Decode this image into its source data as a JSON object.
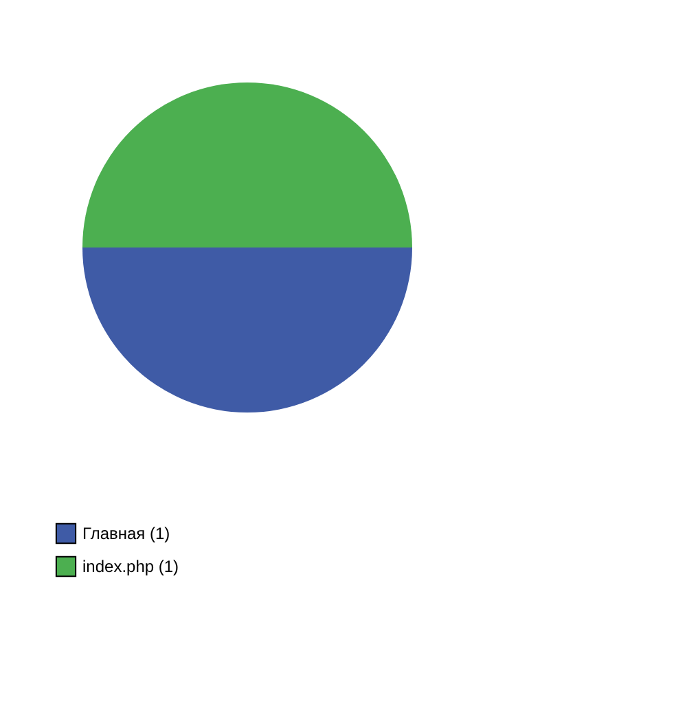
{
  "chart_data": {
    "type": "pie",
    "categories": [
      "Главная (1)",
      "index.php (1)"
    ],
    "values": [
      50,
      50
    ],
    "colors": [
      "#3f5ba6",
      "#4caf50"
    ],
    "legend": "bottom left"
  }
}
